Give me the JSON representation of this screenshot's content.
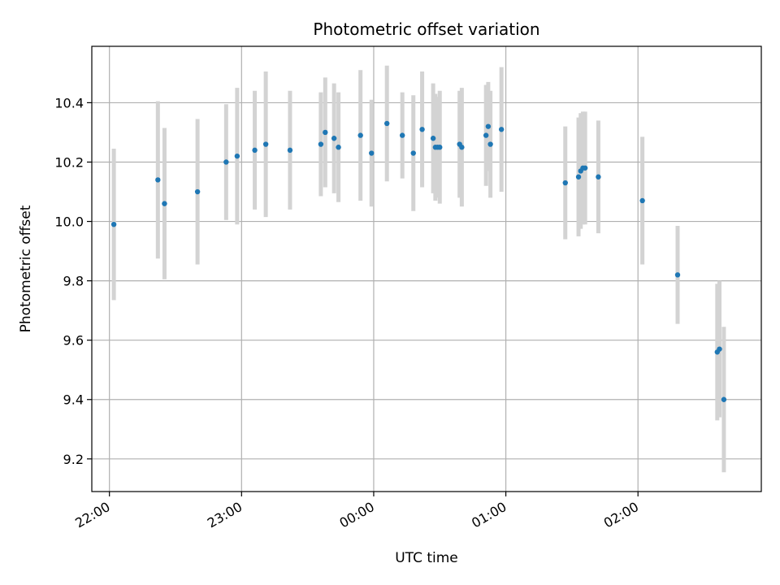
{
  "chart_data": {
    "type": "scatter",
    "title": "Photometric offset variation",
    "xlabel": "UTC time",
    "ylabel": "Photometric offset",
    "x_tick_labels": [
      "22:00",
      "23:00",
      "00:00",
      "01:00",
      "02:00"
    ],
    "x_ticks": [
      "22:00",
      "23:00",
      "00:00",
      "01:00",
      "02:00"
    ],
    "xlim": [
      "21:52",
      "02:56"
    ],
    "y_ticks": [
      9.2,
      9.4,
      9.6,
      9.8,
      10.0,
      10.2,
      10.4
    ],
    "ylim": [
      9.09,
      10.59
    ],
    "grid": true,
    "legend": "none",
    "marker_color": "#1f77b4",
    "errorbar_color": "#d3d3d3",
    "points": [
      {
        "t": "22:02",
        "y": 9.99,
        "err": 0.255
      },
      {
        "t": "22:22",
        "y": 10.14,
        "err": 0.265
      },
      {
        "t": "22:25",
        "y": 10.06,
        "err": 0.255
      },
      {
        "t": "22:40",
        "y": 10.1,
        "err": 0.245
      },
      {
        "t": "22:53",
        "y": 10.2,
        "err": 0.195
      },
      {
        "t": "22:58",
        "y": 10.22,
        "err": 0.23
      },
      {
        "t": "23:06",
        "y": 10.24,
        "err": 0.2
      },
      {
        "t": "23:11",
        "y": 10.26,
        "err": 0.245
      },
      {
        "t": "23:22",
        "y": 10.24,
        "err": 0.2
      },
      {
        "t": "23:36",
        "y": 10.26,
        "err": 0.175
      },
      {
        "t": "23:38",
        "y": 10.3,
        "err": 0.185
      },
      {
        "t": "23:42",
        "y": 10.28,
        "err": 0.185
      },
      {
        "t": "23:44",
        "y": 10.25,
        "err": 0.185
      },
      {
        "t": "23:54",
        "y": 10.29,
        "err": 0.22
      },
      {
        "t": "23:59",
        "y": 10.23,
        "err": 0.18
      },
      {
        "t": "00:06",
        "y": 10.33,
        "err": 0.195
      },
      {
        "t": "00:13",
        "y": 10.29,
        "err": 0.145
      },
      {
        "t": "00:18",
        "y": 10.23,
        "err": 0.195
      },
      {
        "t": "00:22",
        "y": 10.31,
        "err": 0.195
      },
      {
        "t": "00:27",
        "y": 10.28,
        "err": 0.185
      },
      {
        "t": "00:28",
        "y": 10.25,
        "err": 0.18
      },
      {
        "t": "00:29",
        "y": 10.25,
        "err": 0.17
      },
      {
        "t": "00:30",
        "y": 10.25,
        "err": 0.19
      },
      {
        "t": "00:39",
        "y": 10.26,
        "err": 0.18
      },
      {
        "t": "00:40",
        "y": 10.25,
        "err": 0.2
      },
      {
        "t": "00:51",
        "y": 10.29,
        "err": 0.17
      },
      {
        "t": "00:52",
        "y": 10.32,
        "err": 0.15
      },
      {
        "t": "00:53",
        "y": 10.26,
        "err": 0.18
      },
      {
        "t": "00:58",
        "y": 10.31,
        "err": 0.21
      },
      {
        "t": "01:27",
        "y": 10.13,
        "err": 0.19
      },
      {
        "t": "01:33",
        "y": 10.15,
        "err": 0.2
      },
      {
        "t": "01:34",
        "y": 10.17,
        "err": 0.195
      },
      {
        "t": "01:35",
        "y": 10.18,
        "err": 0.19
      },
      {
        "t": "01:36",
        "y": 10.18,
        "err": 0.19
      },
      {
        "t": "01:42",
        "y": 10.15,
        "err": 0.19
      },
      {
        "t": "02:02",
        "y": 10.07,
        "err": 0.215
      },
      {
        "t": "02:18",
        "y": 9.82,
        "err": 0.165
      },
      {
        "t": "02:36",
        "y": 9.56,
        "err": 0.23
      },
      {
        "t": "02:37",
        "y": 9.57,
        "err": 0.23
      },
      {
        "t": "02:39",
        "y": 9.4,
        "err": 0.245
      }
    ]
  }
}
